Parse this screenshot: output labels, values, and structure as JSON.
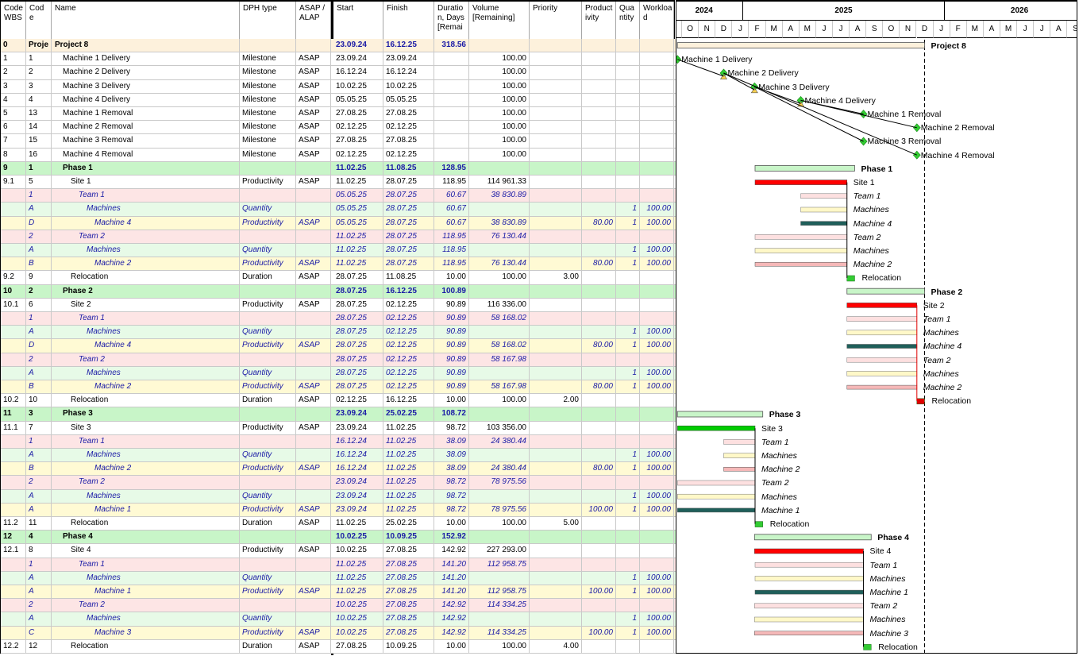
{
  "columns": {
    "wbs": "Code WBS",
    "code": "Cod e",
    "name": "Name",
    "type": "DPH type",
    "asap": "ASAP / ALAP",
    "start": "Start",
    "finish": "Finish",
    "duration": "Duratio n, Days [Remai",
    "volume": "Volume [Remaining]",
    "priority": "Priority",
    "productivity": "Product ivity",
    "quantity": "Qua ntity",
    "workload": "Workloa d"
  },
  "timeline": {
    "years": [
      "2024",
      "2025",
      "2026"
    ],
    "months": [
      "S",
      "O",
      "N",
      "D",
      "J",
      "F",
      "M",
      "A",
      "M",
      "J",
      "J",
      "A",
      "S",
      "O",
      "N",
      "D",
      "J",
      "F",
      "M",
      "A",
      "M",
      "J",
      "J",
      "A",
      "S"
    ]
  },
  "rows": [
    {
      "wbs": "0",
      "code": "Proje",
      "name": "Project 8",
      "type": "",
      "asap": "",
      "start": "23.09.24",
      "finish": "16.12.25",
      "dur": "318.56",
      "vol": "",
      "prio": "",
      "prod": "",
      "qty": "",
      "wl": "",
      "style": "proj",
      "indent": 0
    },
    {
      "wbs": "1",
      "code": "1",
      "name": "Machine 1 Delivery",
      "type": "Milestone",
      "asap": "ASAP",
      "start": "23.09.24",
      "finish": "23.09.24",
      "dur": "",
      "vol": "100.00",
      "prio": "",
      "prod": "",
      "qty": "",
      "wl": "",
      "style": "task",
      "indent": 1
    },
    {
      "wbs": "2",
      "code": "2",
      "name": "Machine 2 Delivery",
      "type": "Milestone",
      "asap": "ASAP",
      "start": "16.12.24",
      "finish": "16.12.24",
      "dur": "",
      "vol": "100.00",
      "prio": "",
      "prod": "",
      "qty": "",
      "wl": "",
      "style": "task",
      "indent": 1
    },
    {
      "wbs": "3",
      "code": "3",
      "name": "Machine 3 Delivery",
      "type": "Milestone",
      "asap": "ASAP",
      "start": "10.02.25",
      "finish": "10.02.25",
      "dur": "",
      "vol": "100.00",
      "prio": "",
      "prod": "",
      "qty": "",
      "wl": "",
      "style": "task",
      "indent": 1
    },
    {
      "wbs": "4",
      "code": "4",
      "name": "Machine 4 Delivery",
      "type": "Milestone",
      "asap": "ASAP",
      "start": "05.05.25",
      "finish": "05.05.25",
      "dur": "",
      "vol": "100.00",
      "prio": "",
      "prod": "",
      "qty": "",
      "wl": "",
      "style": "task",
      "indent": 1
    },
    {
      "wbs": "5",
      "code": "13",
      "name": "Machine 1 Removal",
      "type": "Milestone",
      "asap": "ASAP",
      "start": "27.08.25",
      "finish": "27.08.25",
      "dur": "",
      "vol": "100.00",
      "prio": "",
      "prod": "",
      "qty": "",
      "wl": "",
      "style": "task",
      "indent": 1
    },
    {
      "wbs": "6",
      "code": "14",
      "name": "Machine 2 Removal",
      "type": "Milestone",
      "asap": "ASAP",
      "start": "02.12.25",
      "finish": "02.12.25",
      "dur": "",
      "vol": "100.00",
      "prio": "",
      "prod": "",
      "qty": "",
      "wl": "",
      "style": "task",
      "indent": 1
    },
    {
      "wbs": "7",
      "code": "15",
      "name": "Machine 3 Removal",
      "type": "Milestone",
      "asap": "ASAP",
      "start": "27.08.25",
      "finish": "27.08.25",
      "dur": "",
      "vol": "100.00",
      "prio": "",
      "prod": "",
      "qty": "",
      "wl": "",
      "style": "task",
      "indent": 1
    },
    {
      "wbs": "8",
      "code": "16",
      "name": "Machine 4 Removal",
      "type": "Milestone",
      "asap": "ASAP",
      "start": "02.12.25",
      "finish": "02.12.25",
      "dur": "",
      "vol": "100.00",
      "prio": "",
      "prod": "",
      "qty": "",
      "wl": "",
      "style": "task",
      "indent": 1
    },
    {
      "wbs": "9",
      "code": "1",
      "name": "Phase 1",
      "type": "",
      "asap": "",
      "start": "11.02.25",
      "finish": "11.08.25",
      "dur": "128.95",
      "vol": "",
      "prio": "",
      "prod": "",
      "qty": "",
      "wl": "",
      "style": "phase",
      "indent": 1
    },
    {
      "wbs": "9.1",
      "code": "5",
      "name": "Site 1",
      "type": "Productivity",
      "asap": "ASAP",
      "start": "11.02.25",
      "finish": "28.07.25",
      "dur": "118.95",
      "vol": "114 961.33",
      "prio": "",
      "prod": "",
      "qty": "",
      "wl": "",
      "style": "task",
      "indent": 2
    },
    {
      "wbs": "",
      "code": "1",
      "name": "Team 1",
      "type": "",
      "asap": "",
      "start": "05.05.25",
      "finish": "28.07.25",
      "dur": "60.67",
      "vol": "38 830.89",
      "prio": "",
      "prod": "",
      "qty": "",
      "wl": "",
      "style": "res",
      "indent": 3
    },
    {
      "wbs": "",
      "code": "A",
      "name": "Machines",
      "type": "Quantity",
      "asap": "",
      "start": "05.05.25",
      "finish": "28.07.25",
      "dur": "60.67",
      "vol": "",
      "prio": "",
      "prod": "",
      "qty": "1",
      "wl": "100.00",
      "style": "equip",
      "indent": 4
    },
    {
      "wbs": "",
      "code": "D",
      "name": "Machine 4",
      "type": "Productivity",
      "asap": "ASAP",
      "start": "05.05.25",
      "finish": "28.07.25",
      "dur": "60.67",
      "vol": "38 830.89",
      "prio": "",
      "prod": "80.00",
      "qty": "1",
      "wl": "100.00",
      "style": "mach",
      "indent": 5
    },
    {
      "wbs": "",
      "code": "2",
      "name": "Team 2",
      "type": "",
      "asap": "",
      "start": "11.02.25",
      "finish": "28.07.25",
      "dur": "118.95",
      "vol": "76 130.44",
      "prio": "",
      "prod": "",
      "qty": "",
      "wl": "",
      "style": "res",
      "indent": 3
    },
    {
      "wbs": "",
      "code": "A",
      "name": "Machines",
      "type": "Quantity",
      "asap": "",
      "start": "11.02.25",
      "finish": "28.07.25",
      "dur": "118.95",
      "vol": "",
      "prio": "",
      "prod": "",
      "qty": "1",
      "wl": "100.00",
      "style": "equip",
      "indent": 4
    },
    {
      "wbs": "",
      "code": "B",
      "name": "Machine 2",
      "type": "Productivity",
      "asap": "ASAP",
      "start": "11.02.25",
      "finish": "28.07.25",
      "dur": "118.95",
      "vol": "76 130.44",
      "prio": "",
      "prod": "80.00",
      "qty": "1",
      "wl": "100.00",
      "style": "mach",
      "indent": 5
    },
    {
      "wbs": "9.2",
      "code": "9",
      "name": "Relocation",
      "type": "Duration",
      "asap": "ASAP",
      "start": "28.07.25",
      "finish": "11.08.25",
      "dur": "10.00",
      "vol": "100.00",
      "prio": "3.00",
      "prod": "",
      "qty": "",
      "wl": "",
      "style": "task",
      "indent": 2
    },
    {
      "wbs": "10",
      "code": "2",
      "name": "Phase 2",
      "type": "",
      "asap": "",
      "start": "28.07.25",
      "finish": "16.12.25",
      "dur": "100.89",
      "vol": "",
      "prio": "",
      "prod": "",
      "qty": "",
      "wl": "",
      "style": "phase",
      "indent": 1
    },
    {
      "wbs": "10.1",
      "code": "6",
      "name": "Site 2",
      "type": "Productivity",
      "asap": "ASAP",
      "start": "28.07.25",
      "finish": "02.12.25",
      "dur": "90.89",
      "vol": "116 336.00",
      "prio": "",
      "prod": "",
      "qty": "",
      "wl": "",
      "style": "task",
      "indent": 2
    },
    {
      "wbs": "",
      "code": "1",
      "name": "Team 1",
      "type": "",
      "asap": "",
      "start": "28.07.25",
      "finish": "02.12.25",
      "dur": "90.89",
      "vol": "58 168.02",
      "prio": "",
      "prod": "",
      "qty": "",
      "wl": "",
      "style": "res",
      "indent": 3
    },
    {
      "wbs": "",
      "code": "A",
      "name": "Machines",
      "type": "Quantity",
      "asap": "",
      "start": "28.07.25",
      "finish": "02.12.25",
      "dur": "90.89",
      "vol": "",
      "prio": "",
      "prod": "",
      "qty": "1",
      "wl": "100.00",
      "style": "equip",
      "indent": 4
    },
    {
      "wbs": "",
      "code": "D",
      "name": "Machine 4",
      "type": "Productivity",
      "asap": "ASAP",
      "start": "28.07.25",
      "finish": "02.12.25",
      "dur": "90.89",
      "vol": "58 168.02",
      "prio": "",
      "prod": "80.00",
      "qty": "1",
      "wl": "100.00",
      "style": "mach",
      "indent": 5
    },
    {
      "wbs": "",
      "code": "2",
      "name": "Team 2",
      "type": "",
      "asap": "",
      "start": "28.07.25",
      "finish": "02.12.25",
      "dur": "90.89",
      "vol": "58 167.98",
      "prio": "",
      "prod": "",
      "qty": "",
      "wl": "",
      "style": "res",
      "indent": 3
    },
    {
      "wbs": "",
      "code": "A",
      "name": "Machines",
      "type": "Quantity",
      "asap": "",
      "start": "28.07.25",
      "finish": "02.12.25",
      "dur": "90.89",
      "vol": "",
      "prio": "",
      "prod": "",
      "qty": "1",
      "wl": "100.00",
      "style": "equip",
      "indent": 4
    },
    {
      "wbs": "",
      "code": "B",
      "name": "Machine 2",
      "type": "Productivity",
      "asap": "ASAP",
      "start": "28.07.25",
      "finish": "02.12.25",
      "dur": "90.89",
      "vol": "58 167.98",
      "prio": "",
      "prod": "80.00",
      "qty": "1",
      "wl": "100.00",
      "style": "mach",
      "indent": 5
    },
    {
      "wbs": "10.2",
      "code": "10",
      "name": "Relocation",
      "type": "Duration",
      "asap": "ASAP",
      "start": "02.12.25",
      "finish": "16.12.25",
      "dur": "10.00",
      "vol": "100.00",
      "prio": "2.00",
      "prod": "",
      "qty": "",
      "wl": "",
      "style": "task",
      "indent": 2
    },
    {
      "wbs": "11",
      "code": "3",
      "name": "Phase 3",
      "type": "",
      "asap": "",
      "start": "23.09.24",
      "finish": "25.02.25",
      "dur": "108.72",
      "vol": "",
      "prio": "",
      "prod": "",
      "qty": "",
      "wl": "",
      "style": "phase",
      "indent": 1
    },
    {
      "wbs": "11.1",
      "code": "7",
      "name": "Site 3",
      "type": "Productivity",
      "asap": "ASAP",
      "start": "23.09.24",
      "finish": "11.02.25",
      "dur": "98.72",
      "vol": "103 356.00",
      "prio": "",
      "prod": "",
      "qty": "",
      "wl": "",
      "style": "task",
      "indent": 2
    },
    {
      "wbs": "",
      "code": "1",
      "name": "Team 1",
      "type": "",
      "asap": "",
      "start": "16.12.24",
      "finish": "11.02.25",
      "dur": "38.09",
      "vol": "24 380.44",
      "prio": "",
      "prod": "",
      "qty": "",
      "wl": "",
      "style": "res",
      "indent": 3
    },
    {
      "wbs": "",
      "code": "A",
      "name": "Machines",
      "type": "Quantity",
      "asap": "",
      "start": "16.12.24",
      "finish": "11.02.25",
      "dur": "38.09",
      "vol": "",
      "prio": "",
      "prod": "",
      "qty": "1",
      "wl": "100.00",
      "style": "equip",
      "indent": 4
    },
    {
      "wbs": "",
      "code": "B",
      "name": "Machine 2",
      "type": "Productivity",
      "asap": "ASAP",
      "start": "16.12.24",
      "finish": "11.02.25",
      "dur": "38.09",
      "vol": "24 380.44",
      "prio": "",
      "prod": "80.00",
      "qty": "1",
      "wl": "100.00",
      "style": "mach",
      "indent": 5
    },
    {
      "wbs": "",
      "code": "2",
      "name": "Team 2",
      "type": "",
      "asap": "",
      "start": "23.09.24",
      "finish": "11.02.25",
      "dur": "98.72",
      "vol": "78 975.56",
      "prio": "",
      "prod": "",
      "qty": "",
      "wl": "",
      "style": "res",
      "indent": 3
    },
    {
      "wbs": "",
      "code": "A",
      "name": "Machines",
      "type": "Quantity",
      "asap": "",
      "start": "23.09.24",
      "finish": "11.02.25",
      "dur": "98.72",
      "vol": "",
      "prio": "",
      "prod": "",
      "qty": "1",
      "wl": "100.00",
      "style": "equip",
      "indent": 4
    },
    {
      "wbs": "",
      "code": "A",
      "name": "Machine 1",
      "type": "Productivity",
      "asap": "ASAP",
      "start": "23.09.24",
      "finish": "11.02.25",
      "dur": "98.72",
      "vol": "78 975.56",
      "prio": "",
      "prod": "100.00",
      "qty": "1",
      "wl": "100.00",
      "style": "mach",
      "indent": 5
    },
    {
      "wbs": "11.2",
      "code": "11",
      "name": "Relocation",
      "type": "Duration",
      "asap": "ASAP",
      "start": "11.02.25",
      "finish": "25.02.25",
      "dur": "10.00",
      "vol": "100.00",
      "prio": "5.00",
      "prod": "",
      "qty": "",
      "wl": "",
      "style": "task",
      "indent": 2
    },
    {
      "wbs": "12",
      "code": "4",
      "name": "Phase 4",
      "type": "",
      "asap": "",
      "start": "10.02.25",
      "finish": "10.09.25",
      "dur": "152.92",
      "vol": "",
      "prio": "",
      "prod": "",
      "qty": "",
      "wl": "",
      "style": "phase",
      "indent": 1
    },
    {
      "wbs": "12.1",
      "code": "8",
      "name": "Site 4",
      "type": "Productivity",
      "asap": "ASAP",
      "start": "10.02.25",
      "finish": "27.08.25",
      "dur": "142.92",
      "vol": "227 293.00",
      "prio": "",
      "prod": "",
      "qty": "",
      "wl": "",
      "style": "task",
      "indent": 2
    },
    {
      "wbs": "",
      "code": "1",
      "name": "Team 1",
      "type": "",
      "asap": "",
      "start": "11.02.25",
      "finish": "27.08.25",
      "dur": "141.20",
      "vol": "112 958.75",
      "prio": "",
      "prod": "",
      "qty": "",
      "wl": "",
      "style": "res",
      "indent": 3
    },
    {
      "wbs": "",
      "code": "A",
      "name": "Machines",
      "type": "Quantity",
      "asap": "",
      "start": "11.02.25",
      "finish": "27.08.25",
      "dur": "141.20",
      "vol": "",
      "prio": "",
      "prod": "",
      "qty": "1",
      "wl": "100.00",
      "style": "equip",
      "indent": 4
    },
    {
      "wbs": "",
      "code": "A",
      "name": "Machine 1",
      "type": "Productivity",
      "asap": "ASAP",
      "start": "11.02.25",
      "finish": "27.08.25",
      "dur": "141.20",
      "vol": "112 958.75",
      "prio": "",
      "prod": "100.00",
      "qty": "1",
      "wl": "100.00",
      "style": "mach",
      "indent": 5
    },
    {
      "wbs": "",
      "code": "2",
      "name": "Team 2",
      "type": "",
      "asap": "",
      "start": "10.02.25",
      "finish": "27.08.25",
      "dur": "142.92",
      "vol": "114 334.25",
      "prio": "",
      "prod": "",
      "qty": "",
      "wl": "",
      "style": "res",
      "indent": 3
    },
    {
      "wbs": "",
      "code": "A",
      "name": "Machines",
      "type": "Quantity",
      "asap": "",
      "start": "10.02.25",
      "finish": "27.08.25",
      "dur": "142.92",
      "vol": "",
      "prio": "",
      "prod": "",
      "qty": "1",
      "wl": "100.00",
      "style": "equip",
      "indent": 4
    },
    {
      "wbs": "",
      "code": "C",
      "name": "Machine 3",
      "type": "Productivity",
      "asap": "ASAP",
      "start": "10.02.25",
      "finish": "27.08.25",
      "dur": "142.92",
      "vol": "114 334.25",
      "prio": "",
      "prod": "100.00",
      "qty": "1",
      "wl": "100.00",
      "style": "mach",
      "indent": 5
    },
    {
      "wbs": "12.2",
      "code": "12",
      "name": "Relocation",
      "type": "Duration",
      "asap": "ASAP",
      "start": "27.08.25",
      "finish": "10.09.25",
      "dur": "10.00",
      "vol": "100.00",
      "prio": "4.00",
      "prod": "",
      "qty": "",
      "wl": "",
      "style": "task",
      "indent": 2
    }
  ],
  "colors": {
    "project_bar": "#fdf1dc",
    "phase_bar": "#c8f5c8",
    "site_bar_red": "#ff0000",
    "site_bar_green": "#00cc00",
    "team_bar": "#fde0e0",
    "machines_bar": "#fff8c8",
    "machine_bar_dark": "#1f5f5a",
    "machine_bar_pink": "#f5b8b8",
    "milestone": "#33cc33",
    "relocation": "#33cc33",
    "relocation_red": "#e00000"
  }
}
